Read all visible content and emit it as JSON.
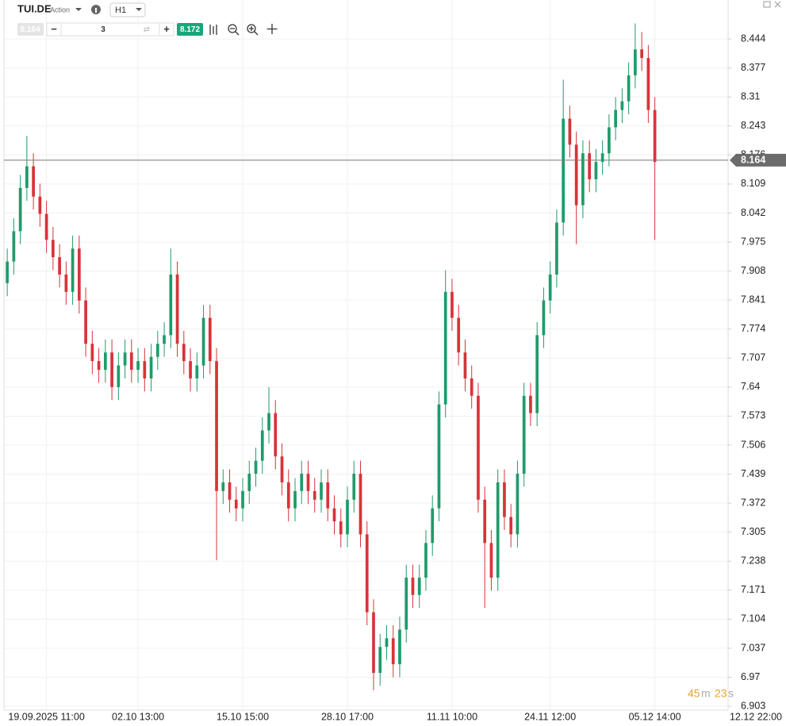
{
  "toolbar": {
    "symbol": "TUI.DE",
    "kind": "Action",
    "timeframe": "H1",
    "bid": "8.164",
    "quantity": "3",
    "ask": "8.172"
  },
  "countdown": {
    "minutes": "45",
    "minutes_unit": "m",
    "seconds": "23",
    "seconds_unit": "s"
  },
  "chart_data": {
    "type": "candlestick",
    "up_color": "#1f9b6a",
    "down_color": "#d6343a",
    "grid": true,
    "last_price": 8.164,
    "ylim": [
      6.894,
      8.534
    ],
    "yticks": [
      6.903,
      6.97,
      7.037,
      7.104,
      7.171,
      7.238,
      7.305,
      7.372,
      7.439,
      7.506,
      7.573,
      7.64,
      7.707,
      7.774,
      7.841,
      7.908,
      7.975,
      8.042,
      8.109,
      8.176,
      8.243,
      8.31,
      8.377,
      8.444
    ],
    "xlim": [
      -0.5,
      110.2
    ],
    "xticks": [
      {
        "value": 6,
        "label": "19.09.2025 11:00"
      },
      {
        "value": 20,
        "label": "02.10 13:00"
      },
      {
        "value": 36,
        "label": "15.10 15:00"
      },
      {
        "value": 52,
        "label": "28.10 17:00"
      },
      {
        "value": 68,
        "label": "11.11 10:00"
      },
      {
        "value": 83,
        "label": "24.11 12:00"
      },
      {
        "value": 99,
        "label": "05.12 14:00"
      },
      {
        "value": 115,
        "label": "12.12 22:00"
      }
    ],
    "open": [
      7.88,
      7.93,
      8.0,
      8.1,
      8.15,
      8.08,
      8.04,
      7.98,
      7.94,
      7.9,
      7.86,
      7.96,
      7.84,
      7.74,
      7.7,
      7.68,
      7.72,
      7.64,
      7.69,
      7.72,
      7.68,
      7.7,
      7.66,
      7.71,
      7.74,
      7.76,
      7.9,
      7.74,
      7.7,
      7.66,
      7.69,
      7.8,
      7.7,
      7.4,
      7.42,
      7.38,
      7.36,
      7.4,
      7.44,
      7.47,
      7.54,
      7.58,
      7.48,
      7.42,
      7.36,
      7.4,
      7.44,
      7.4,
      7.38,
      7.42,
      7.36,
      7.33,
      7.3,
      7.38,
      7.44,
      7.3,
      7.12,
      6.98,
      7.04,
      7.06,
      7.0,
      7.08,
      7.2,
      7.16,
      7.2,
      7.28,
      7.36,
      7.6,
      7.86,
      7.8,
      7.72,
      7.66,
      7.62,
      7.38,
      7.28,
      7.2,
      7.42,
      7.34,
      7.3,
      7.44,
      7.62,
      7.58,
      7.76,
      7.84,
      7.9,
      8.02,
      8.26,
      8.2,
      8.06,
      8.18,
      8.12,
      8.16,
      8.18,
      8.24,
      8.28,
      8.3,
      8.36,
      8.42,
      8.4,
      8.28
    ],
    "high": [
      7.96,
      8.03,
      8.13,
      8.22,
      8.18,
      8.11,
      8.07,
      8.01,
      7.97,
      7.93,
      7.99,
      7.99,
      7.87,
      7.77,
      7.73,
      7.75,
      7.75,
      7.72,
      7.75,
      7.75,
      7.73,
      7.73,
      7.74,
      7.77,
      7.79,
      7.96,
      7.93,
      7.77,
      7.73,
      7.72,
      7.83,
      7.83,
      7.73,
      7.45,
      7.45,
      7.41,
      7.43,
      7.47,
      7.5,
      7.57,
      7.64,
      7.61,
      7.51,
      7.45,
      7.43,
      7.47,
      7.47,
      7.43,
      7.45,
      7.45,
      7.39,
      7.36,
      7.41,
      7.47,
      7.47,
      7.33,
      7.15,
      7.07,
      7.09,
      7.09,
      7.11,
      7.23,
      7.23,
      7.23,
      7.31,
      7.39,
      7.63,
      7.91,
      7.89,
      7.83,
      7.75,
      7.69,
      7.65,
      7.41,
      7.31,
      7.45,
      7.45,
      7.37,
      7.47,
      7.65,
      7.65,
      7.79,
      7.87,
      7.93,
      8.05,
      8.35,
      8.29,
      8.23,
      8.21,
      8.21,
      8.19,
      8.21,
      8.27,
      8.31,
      8.33,
      8.39,
      8.48,
      8.46,
      8.43,
      8.31
    ],
    "low": [
      7.85,
      7.9,
      7.97,
      8.07,
      8.05,
      8.01,
      7.95,
      7.91,
      7.87,
      7.83,
      7.83,
      7.81,
      7.71,
      7.67,
      7.65,
      7.65,
      7.61,
      7.61,
      7.66,
      7.65,
      7.65,
      7.63,
      7.63,
      7.68,
      7.71,
      7.73,
      7.71,
      7.67,
      7.63,
      7.63,
      7.66,
      7.67,
      7.24,
      7.37,
      7.35,
      7.33,
      7.33,
      7.37,
      7.41,
      7.44,
      7.51,
      7.45,
      7.39,
      7.33,
      7.33,
      7.37,
      7.37,
      7.35,
      7.35,
      7.33,
      7.3,
      7.27,
      7.27,
      7.35,
      7.27,
      7.09,
      6.94,
      6.95,
      7.01,
      6.97,
      6.97,
      7.05,
      7.13,
      7.13,
      7.17,
      7.25,
      7.33,
      7.57,
      7.77,
      7.69,
      7.63,
      7.59,
      7.35,
      7.13,
      7.17,
      7.17,
      7.31,
      7.27,
      7.27,
      7.41,
      7.55,
      7.55,
      7.73,
      7.81,
      7.87,
      7.99,
      8.17,
      7.97,
      8.03,
      8.09,
      8.09,
      8.13,
      8.15,
      8.21,
      8.25,
      8.27,
      8.33,
      8.37,
      8.25,
      7.98
    ],
    "close": [
      7.93,
      8.0,
      8.1,
      8.15,
      8.08,
      8.04,
      7.98,
      7.94,
      7.9,
      7.86,
      7.96,
      7.84,
      7.74,
      7.7,
      7.68,
      7.72,
      7.64,
      7.69,
      7.72,
      7.68,
      7.7,
      7.66,
      7.71,
      7.74,
      7.76,
      7.9,
      7.74,
      7.7,
      7.66,
      7.69,
      7.8,
      7.7,
      7.4,
      7.42,
      7.38,
      7.36,
      7.4,
      7.44,
      7.47,
      7.54,
      7.58,
      7.48,
      7.42,
      7.36,
      7.4,
      7.44,
      7.4,
      7.38,
      7.42,
      7.36,
      7.33,
      7.3,
      7.38,
      7.44,
      7.3,
      7.12,
      6.98,
      7.04,
      7.06,
      7.0,
      7.08,
      7.2,
      7.16,
      7.2,
      7.28,
      7.36,
      7.6,
      7.86,
      7.8,
      7.72,
      7.66,
      7.62,
      7.38,
      7.28,
      7.2,
      7.42,
      7.34,
      7.3,
      7.44,
      7.62,
      7.58,
      7.76,
      7.84,
      7.9,
      8.02,
      8.26,
      8.2,
      8.06,
      8.18,
      8.12,
      8.16,
      8.18,
      8.24,
      8.28,
      8.3,
      8.36,
      8.42,
      8.4,
      8.28,
      8.16
    ]
  }
}
